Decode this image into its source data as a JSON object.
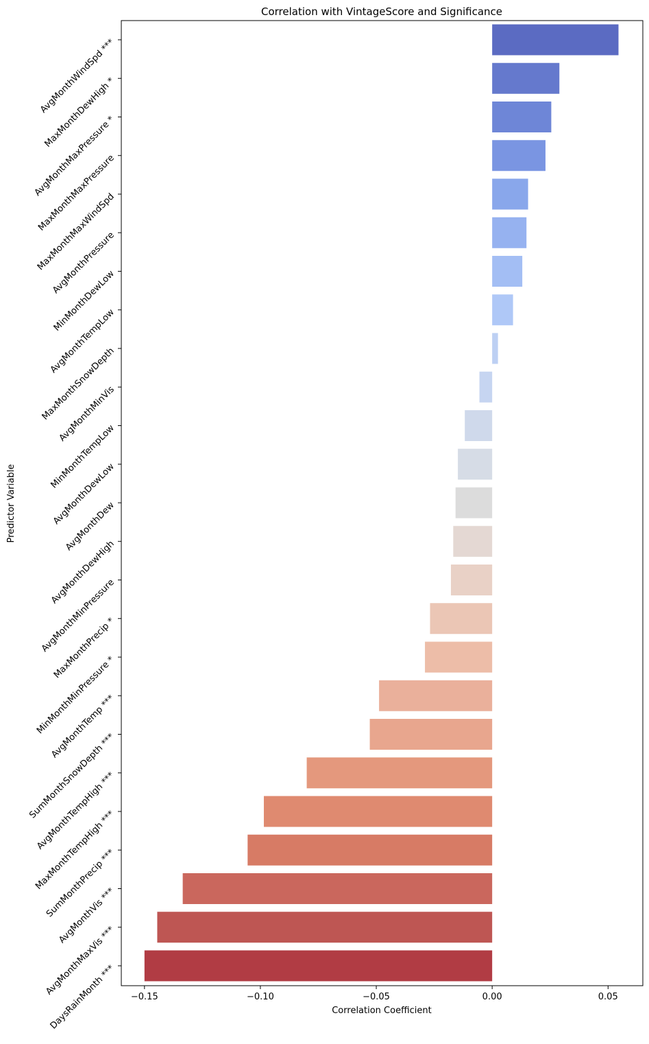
{
  "chart_data": {
    "type": "bar",
    "orientation": "horizontal",
    "title": "Correlation with VintageScore and Significance",
    "xlabel": "Correlation Coefficient",
    "ylabel": "Predictor Variable",
    "xlim": [
      -0.16,
      0.065
    ],
    "x_ticks": [
      -0.15,
      -0.1,
      -0.05,
      0.0,
      0.05
    ],
    "x_tick_labels": [
      "−0.15",
      "−0.10",
      "−0.05",
      "0.00",
      "0.05"
    ],
    "grid": false,
    "legend": "none",
    "palette": "coolwarm",
    "categories": [
      "AvgMonthWindSpd ***",
      "MaxMonthDewHigh *",
      "AvgMonthMaxPressure *",
      "MaxMonthMaxPressure",
      "MaxMonthMaxWindSpd",
      "AvgMonthPressure",
      "MinMonthDewLow",
      "AvgMonthTempLow",
      "MaxMonthSnowDepth",
      "AvgMonthMinVis",
      "MinMonthTempLow",
      "AvgMonthDewLow",
      "AvgMonthDew",
      "AvgMonthDewHigh",
      "AvgMonthMinPressure",
      "MaxMonthPrecip *",
      "MinMonthMinPressure *",
      "AvgMonthTemp ***",
      "SumMonthSnowDepth ***",
      "AvgMonthTempHigh ***",
      "MaxMonthTempHigh ***",
      "SumMonthPrecip ***",
      "AvgMonthVis ***",
      "AvgMonthMaxVis ***",
      "DaysRainMonth ***"
    ],
    "values": [
      0.0545,
      0.029,
      0.0255,
      0.023,
      0.0155,
      0.0148,
      0.013,
      0.009,
      0.0025,
      -0.0055,
      -0.0118,
      -0.0148,
      -0.0158,
      -0.0168,
      -0.0178,
      -0.0268,
      -0.029,
      -0.0488,
      -0.0528,
      -0.08,
      -0.0985,
      -0.1055,
      -0.1335,
      -0.1445,
      -0.15
    ],
    "colors": [
      "#5b6bc2",
      "#6579cd",
      "#6e86d7",
      "#7a95e2",
      "#89a7eb",
      "#96b2f0",
      "#a3bef4",
      "#afc8f7",
      "#bdd0f3",
      "#c6d5f1",
      "#cfd9eb",
      "#d6dce6",
      "#dcdcdc",
      "#e4d8d3",
      "#e9d1c6",
      "#ebc6b5",
      "#edbda8",
      "#eab09b",
      "#e8a68e",
      "#e4987d",
      "#df8a70",
      "#d77b65",
      "#ca675d",
      "#be5653",
      "#b13c44"
    ]
  }
}
